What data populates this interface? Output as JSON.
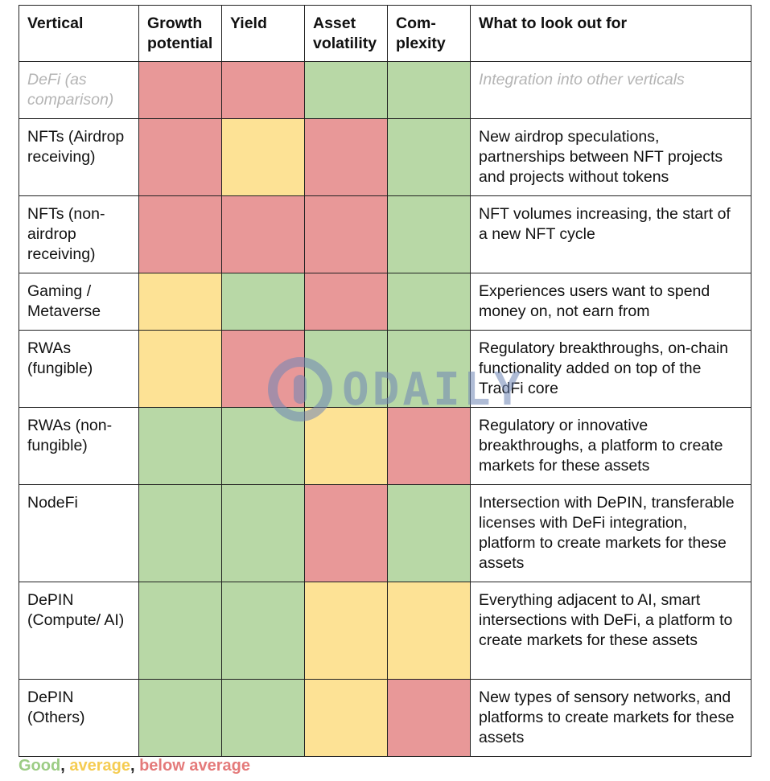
{
  "header": {
    "vertical": "Vertical",
    "growth": "Growth potential",
    "yield": "Yield",
    "volatility": "Asset volatility",
    "complexity": "Com-plexity",
    "look": "What to look out for"
  },
  "colors": {
    "good": "#b8d8a6",
    "average": "#fde295",
    "below": "#e89898",
    "muted_text": "#b4b4b4"
  },
  "rows": [
    {
      "vertical": "DeFi (as comparison)",
      "look": "Integration into other verticals",
      "ratings": [
        "below",
        "below",
        "good",
        "good"
      ],
      "muted": true
    },
    {
      "vertical": "NFTs (Airdrop receiving)",
      "look": "New airdrop speculations, partnerships between NFT projects and projects without tokens",
      "ratings": [
        "below",
        "average",
        "below",
        "good"
      ]
    },
    {
      "vertical": "NFTs (non-airdrop receiving)",
      "look": "NFT volumes increasing, the start of a new NFT cycle",
      "ratings": [
        "below",
        "below",
        "below",
        "good"
      ]
    },
    {
      "vertical": "Gaming / Metaverse",
      "look": "Experiences users want to spend money on, not earn from",
      "ratings": [
        "average",
        "good",
        "below",
        "good"
      ]
    },
    {
      "vertical": "RWAs (fungible)",
      "look": "Regulatory breakthroughs, on-chain functionality added on top of the TradFi core",
      "ratings": [
        "average",
        "below",
        "good",
        "good"
      ]
    },
    {
      "vertical": "RWAs (non-fungible)",
      "look": "Regulatory or innovative breakthroughs, a platform to create markets for these assets",
      "ratings": [
        "good",
        "good",
        "average",
        "below"
      ]
    },
    {
      "vertical": "NodeFi",
      "look": "Intersection with DePIN, transferable licenses with DeFi integration, platform to create markets for these assets",
      "ratings": [
        "good",
        "good",
        "below",
        "good"
      ]
    },
    {
      "vertical": "DePIN (Compute/ AI)",
      "look": "Everything adjacent to AI, smart intersections with DeFi, a platform to create markets for these assets",
      "ratings": [
        "good",
        "good",
        "average",
        "average"
      ]
    },
    {
      "vertical": "DePIN (Others)",
      "look": "New types of sensory networks, and platforms to create markets for these assets",
      "ratings": [
        "good",
        "good",
        "average",
        "below"
      ]
    }
  ],
  "legend": {
    "good": "Good",
    "average": "average",
    "below": "below average",
    "comma": ","
  },
  "watermark": {
    "text": "ODAILY",
    "icon": "odaily-logo-icon"
  }
}
